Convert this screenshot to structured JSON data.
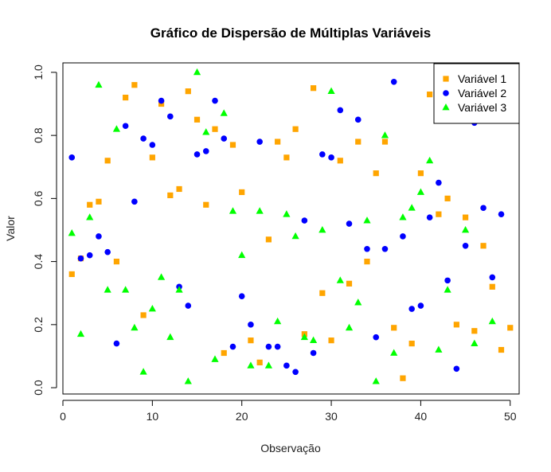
{
  "chart_data": {
    "type": "scatter",
    "title": "Gráfico de Dispersão de Múltiplas Variáveis",
    "xlabel": "Observação",
    "ylabel": "Valor",
    "xlim": [
      0,
      51
    ],
    "ylim": [
      -0.02,
      1.03
    ],
    "x_ticks": [
      0,
      10,
      20,
      30,
      40,
      50
    ],
    "y_ticks": [
      0.0,
      0.2,
      0.4,
      0.6,
      0.8,
      1.0
    ],
    "x_tick_labels": [
      "0",
      "10",
      "20",
      "30",
      "40",
      "50"
    ],
    "y_tick_labels": [
      "0.0",
      "0.2",
      "0.4",
      "0.6",
      "0.8",
      "1.0"
    ],
    "legend_position": "top-right",
    "grid": false,
    "x": [
      1,
      2,
      3,
      4,
      5,
      6,
      7,
      8,
      9,
      10,
      11,
      12,
      13,
      14,
      15,
      16,
      17,
      18,
      19,
      20,
      21,
      22,
      23,
      24,
      25,
      26,
      27,
      28,
      29,
      30,
      31,
      32,
      33,
      34,
      35,
      36,
      37,
      38,
      39,
      40,
      41,
      42,
      43,
      44,
      45,
      46,
      47,
      48,
      49,
      50
    ],
    "series": [
      {
        "name": "Variável 1",
        "marker": "square",
        "color": "#FFA500",
        "values": [
          0.36,
          0.41,
          0.58,
          0.59,
          0.72,
          0.4,
          0.92,
          0.96,
          0.23,
          0.73,
          0.9,
          0.61,
          0.63,
          0.94,
          0.85,
          0.58,
          0.82,
          0.11,
          0.77,
          0.62,
          0.15,
          0.08,
          0.47,
          0.78,
          0.73,
          0.82,
          0.17,
          0.95,
          0.3,
          0.15,
          0.72,
          0.33,
          0.78,
          0.4,
          0.68,
          0.78,
          0.19,
          0.03,
          0.14,
          0.68,
          0.93,
          0.55,
          0.6,
          0.2,
          0.54,
          0.18,
          0.45,
          0.32,
          0.12,
          0.19
        ]
      },
      {
        "name": "Variável 2",
        "marker": "circle",
        "color": "#0000FF",
        "values": [
          0.73,
          0.41,
          0.42,
          0.48,
          0.43,
          0.14,
          0.83,
          0.59,
          0.79,
          0.77,
          0.91,
          0.86,
          0.32,
          0.26,
          0.74,
          0.75,
          0.91,
          0.79,
          0.13,
          0.29,
          0.2,
          0.78,
          0.13,
          0.13,
          0.07,
          0.05,
          0.53,
          0.11,
          0.74,
          0.73,
          0.88,
          0.52,
          0.85,
          0.44,
          0.16,
          0.44,
          0.97,
          0.48,
          0.25,
          0.26,
          0.54,
          0.65,
          0.34,
          0.06,
          0.45,
          0.84,
          0.57,
          0.35,
          0.55,
          0.88
        ]
      },
      {
        "name": "Variável 3",
        "marker": "triangle",
        "color": "#00FF00",
        "values": [
          0.49,
          0.17,
          0.54,
          0.96,
          0.31,
          0.82,
          0.31,
          0.19,
          0.05,
          0.25,
          0.35,
          0.16,
          0.31,
          0.02,
          1.0,
          0.81,
          0.09,
          0.87,
          0.56,
          0.42,
          0.07,
          0.56,
          0.07,
          0.21,
          0.55,
          0.48,
          0.16,
          0.15,
          0.5,
          0.94,
          0.34,
          0.19,
          0.27,
          0.53,
          0.02,
          0.8,
          0.11,
          0.54,
          0.57,
          0.62,
          0.72,
          0.12,
          0.31,
          0.95,
          0.5,
          0.14,
          0.87,
          0.21,
          0.92,
          0.89
        ]
      }
    ]
  }
}
